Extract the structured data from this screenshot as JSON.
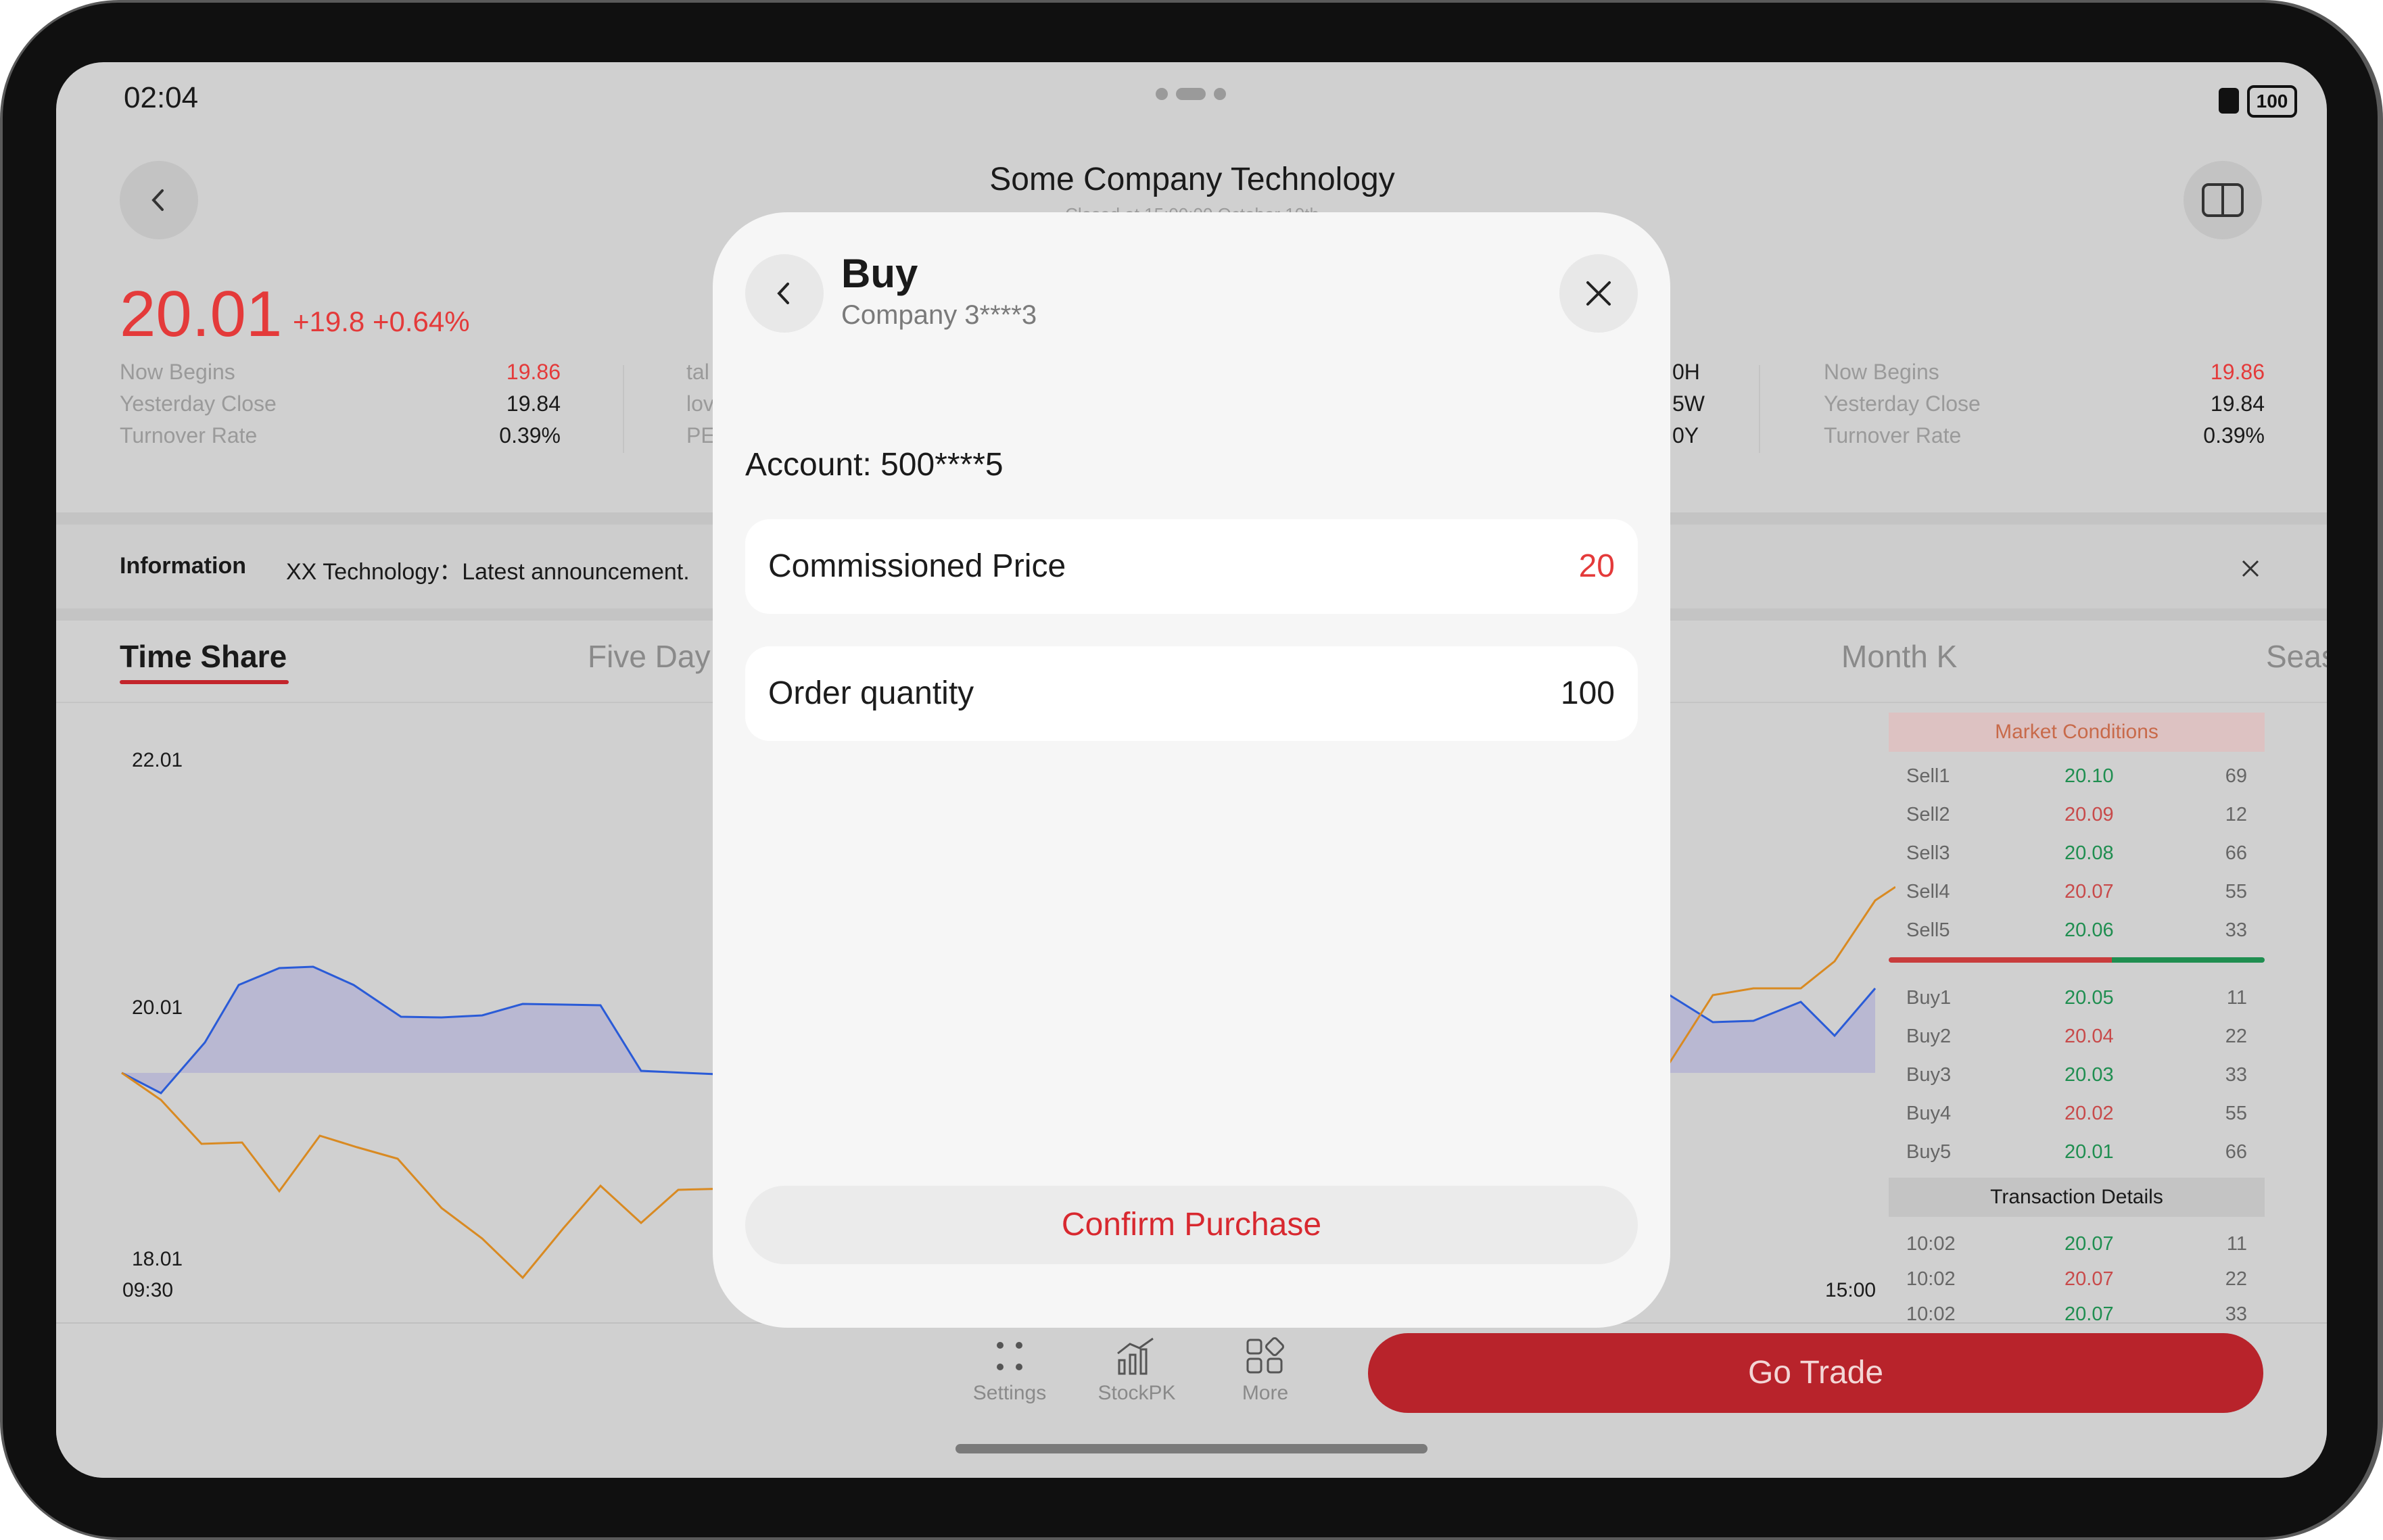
{
  "status_bar": {
    "time": "02:04",
    "battery": "100"
  },
  "header": {
    "title": "Some Company Technology",
    "subtitle": "Closed at 15:00:00 October 10th"
  },
  "quote": {
    "price": "20.01",
    "change": "+19.8 +0.64%",
    "left_stats": [
      {
        "label": "Now Begins",
        "value": "19.86",
        "color": "#e43a3a"
      },
      {
        "label": "Yesterday Close",
        "value": "19.84",
        "color": "#1a1a1a"
      },
      {
        "label": "Turnover Rate",
        "value": "0.39%",
        "color": "#1a1a1a"
      }
    ],
    "col2_fragments": [
      "tal",
      "lov",
      "PE"
    ],
    "col3_fragments": [
      "0H",
      "5W",
      "0Y"
    ],
    "right_stats": [
      {
        "label": "Now Begins",
        "value": "19.86",
        "color": "#e43a3a"
      },
      {
        "label": "Yesterday Close",
        "value": "19.84",
        "color": "#1a1a1a"
      },
      {
        "label": "Turnover Rate",
        "value": "0.39%",
        "color": "#1a1a1a"
      }
    ]
  },
  "info_bar": {
    "label": "Information",
    "text": "XX Technology：Latest announcement."
  },
  "tabs": [
    {
      "label": "Time Share",
      "active": true
    },
    {
      "label": "Five Day",
      "active": false
    },
    {
      "label": "Month K",
      "active": false
    },
    {
      "label": "Seas",
      "active": false
    }
  ],
  "chart_axis": {
    "y_top": "22.01",
    "y_mid": "20.01",
    "y_bottom": "18.01",
    "x_start": "09:30",
    "x_end": "15:00"
  },
  "order_book": {
    "title": "Market Conditions",
    "sells": [
      {
        "label": "Sell1",
        "price": "20.10",
        "qty": "69",
        "color": "#2e9e57"
      },
      {
        "label": "Sell2",
        "price": "20.09",
        "qty": "12",
        "color": "#e43a3a"
      },
      {
        "label": "Sell3",
        "price": "20.08",
        "qty": "66",
        "color": "#2e9e57"
      },
      {
        "label": "Sell4",
        "price": "20.07",
        "qty": "55",
        "color": "#e43a3a"
      },
      {
        "label": "Sell5",
        "price": "20.06",
        "qty": "33",
        "color": "#2e9e57"
      }
    ],
    "buys": [
      {
        "label": "Buy1",
        "price": "20.05",
        "qty": "11",
        "color": "#2e9e57"
      },
      {
        "label": "Buy2",
        "price": "20.04",
        "qty": "22",
        "color": "#e43a3a"
      },
      {
        "label": "Buy3",
        "price": "20.03",
        "qty": "33",
        "color": "#2e9e57"
      },
      {
        "label": "Buy4",
        "price": "20.02",
        "qty": "55",
        "color": "#e43a3a"
      },
      {
        "label": "Buy5",
        "price": "20.01",
        "qty": "66",
        "color": "#2e9e57"
      }
    ],
    "transactions_title": "Transaction Details",
    "transactions": [
      {
        "time": "10:02",
        "price": "20.07",
        "qty": "11",
        "color": "#2e9e57"
      },
      {
        "time": "10:02",
        "price": "20.07",
        "qty": "22",
        "color": "#e43a3a"
      },
      {
        "time": "10:02",
        "price": "20.07",
        "qty": "33",
        "color": "#2e9e57"
      }
    ]
  },
  "bottom_nav": {
    "items": [
      {
        "label": "Settings",
        "icon": "settings-dots-icon"
      },
      {
        "label": "StockPK",
        "icon": "bar-chart-icon"
      },
      {
        "label": "More",
        "icon": "grid-icon"
      }
    ],
    "go_trade": "Go Trade"
  },
  "modal": {
    "title": "Buy",
    "subtitle": "Company 3****3",
    "account": "Account: 500****5",
    "fields": [
      {
        "label": "Commissioned Price",
        "value": "20",
        "color": "#e43a3a"
      },
      {
        "label": "Order quantity",
        "value": "100",
        "color": "#1c1c1c"
      }
    ],
    "confirm": "Confirm Purchase"
  },
  "colors": {
    "accent_red": "#b8232b",
    "up_red": "#e43a3a",
    "down_green": "#2e9e57",
    "price_line": "#2a5bd7",
    "avg_line": "#e08a1c"
  }
}
